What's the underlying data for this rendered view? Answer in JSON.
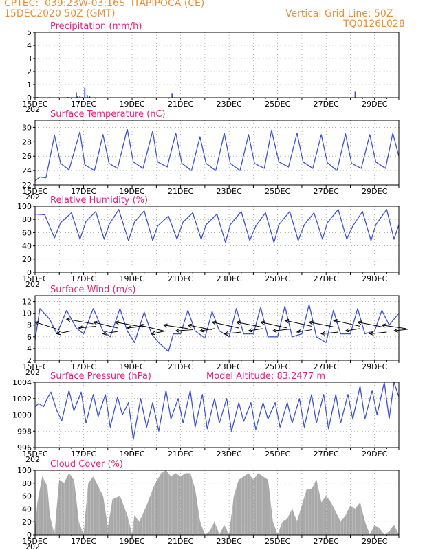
{
  "header": {
    "agency": "CPTEC:",
    "location": "039:23W-03:16S",
    "station": "ITAPIPOCA (CE)",
    "date": "15DEC2020 50Z (GMT)",
    "grid_note": "Vertical Grid Line: 50Z",
    "code": "TQ0126L028"
  },
  "x_axis": {
    "day_range": [
      15,
      30
    ],
    "tick_labels": [
      "15DEC",
      "17DEC",
      "19DEC",
      "21DEC",
      "23DEC",
      "25DEC",
      "27DEC",
      "29DEC"
    ],
    "tick_days": [
      15,
      17,
      19,
      21,
      23,
      25,
      27,
      29
    ],
    "year_fragment": "202"
  },
  "colors": {
    "header": "#e8903a",
    "panel_title": "#e6207a",
    "line": "#3a50d8",
    "cloud": "#a9a9a9"
  },
  "chart_data": [
    {
      "name": "precip",
      "type": "bar",
      "title": "Precipitation (mm/h)",
      "ylim": [
        0,
        5
      ],
      "yticks": [
        0,
        1,
        2,
        3,
        4,
        5
      ],
      "x_unit": "day of Dec 2020",
      "x": [
        15.1,
        15.6,
        15.95,
        16.35,
        16.7,
        16.75,
        16.85,
        16.95,
        17.05,
        17.15,
        17.25,
        20.65,
        28.2
      ],
      "values": [
        0.05,
        0.05,
        0.05,
        0.05,
        0.4,
        0.1,
        0.1,
        0.05,
        0.75,
        0.2,
        0.1,
        0.35,
        0.45
      ],
      "grid": true
    },
    {
      "name": "temp",
      "type": "line",
      "title": "Surface Temperature (nC)",
      "ylim": [
        22,
        31
      ],
      "yticks": [
        22,
        24,
        26,
        28,
        30
      ],
      "x": [
        15.0,
        15.2,
        15.45,
        15.8,
        16.05,
        16.4,
        16.85,
        17.05,
        17.45,
        17.8,
        18.05,
        18.4,
        18.8,
        19.05,
        19.45,
        19.85,
        20.05,
        20.45,
        20.8,
        21.05,
        21.45,
        21.8,
        22.05,
        22.45,
        22.8,
        23.05,
        23.45,
        23.8,
        24.05,
        24.45,
        24.75,
        25.05,
        25.45,
        25.8,
        26.05,
        26.45,
        26.8,
        27.05,
        27.45,
        27.8,
        28.05,
        28.45,
        28.8,
        29.05,
        29.45,
        29.75,
        30.0
      ],
      "values": [
        22.6,
        23.1,
        23.0,
        28.9,
        25.0,
        24.1,
        29.4,
        24.8,
        24.0,
        29.0,
        25.0,
        24.3,
        29.8,
        25.2,
        24.3,
        29.5,
        25.2,
        24.5,
        29.2,
        25.0,
        24.0,
        28.7,
        25.0,
        24.0,
        29.2,
        25.0,
        24.0,
        29.0,
        25.0,
        24.3,
        29.6,
        25.2,
        24.5,
        29.2,
        25.2,
        24.3,
        29.0,
        25.1,
        24.0,
        29.1,
        25.0,
        24.3,
        29.0,
        25.2,
        24.3,
        29.2,
        26.0
      ],
      "grid": true
    },
    {
      "name": "rh",
      "type": "line",
      "title": "Relative Humidity (%)",
      "ylim": [
        0,
        100
      ],
      "yticks": [
        0,
        20,
        40,
        60,
        80,
        100
      ],
      "x": [
        15.0,
        15.4,
        15.8,
        16.05,
        16.5,
        16.85,
        17.1,
        17.5,
        17.85,
        18.05,
        18.45,
        18.85,
        19.1,
        19.5,
        19.85,
        20.05,
        20.5,
        20.85,
        21.1,
        21.5,
        21.85,
        22.05,
        22.5,
        22.85,
        23.05,
        23.5,
        23.85,
        24.1,
        24.5,
        24.85,
        25.05,
        25.5,
        25.85,
        26.1,
        26.5,
        26.85,
        27.05,
        27.5,
        27.85,
        28.1,
        28.5,
        28.85,
        29.05,
        29.5,
        29.8,
        30.0
      ],
      "values": [
        88,
        87,
        52,
        75,
        90,
        50,
        77,
        92,
        50,
        72,
        95,
        48,
        76,
        93,
        48,
        70,
        85,
        50,
        76,
        90,
        50,
        72,
        88,
        45,
        72,
        92,
        48,
        70,
        90,
        45,
        72,
        92,
        48,
        72,
        90,
        50,
        75,
        95,
        50,
        70,
        92,
        48,
        72,
        95,
        50,
        72
      ],
      "grid": true
    },
    {
      "name": "wind",
      "type": "line",
      "title": "Surface Wind (m/s)",
      "ylim": [
        2,
        13
      ],
      "yticks": [
        2,
        4,
        6,
        8,
        10,
        12
      ],
      "x": [
        15.0,
        15.2,
        15.6,
        15.9,
        16.3,
        16.7,
        17.0,
        17.4,
        17.8,
        18.1,
        18.5,
        18.8,
        19.1,
        19.5,
        19.8,
        20.1,
        20.5,
        20.7,
        21.0,
        21.3,
        21.6,
        22.0,
        22.3,
        22.6,
        23.0,
        23.3,
        23.6,
        24.0,
        24.3,
        24.6,
        25.0,
        25.3,
        25.6,
        26.0,
        26.3,
        26.6,
        27.0,
        27.3,
        27.6,
        28.0,
        28.3,
        28.6,
        29.0,
        29.3,
        29.6,
        30.0
      ],
      "values": [
        5.5,
        10.8,
        9.0,
        6.5,
        10.5,
        7.5,
        6.5,
        10.8,
        7.0,
        6.0,
        10.8,
        7.0,
        5.0,
        10.2,
        6.5,
        5.0,
        3.5,
        6.5,
        6.5,
        10.5,
        7.0,
        5.8,
        10.3,
        7.0,
        6.0,
        10.8,
        6.5,
        6.5,
        11.0,
        6.0,
        6.0,
        11.2,
        6.0,
        6.5,
        11.5,
        6.0,
        5.0,
        10.5,
        6.5,
        6.5,
        10.8,
        6.5,
        7.0,
        10.5,
        8.0,
        10.0
      ],
      "arrow_days": [
        15.0,
        15.9,
        16.3,
        16.8,
        17.4,
        17.8,
        18.3,
        18.8,
        19.3,
        19.8,
        20.3,
        20.8,
        21.3,
        21.8,
        22.3,
        22.8,
        23.3,
        23.8,
        24.3,
        24.8,
        25.3,
        25.8,
        26.3,
        26.8,
        27.3,
        27.8,
        28.3,
        28.8,
        29.3,
        29.8
      ],
      "arrow_levels": [
        8.5,
        6.5,
        9.0,
        7.5,
        8.5,
        6.5,
        8.5,
        7.5,
        8.0,
        6.5,
        8.0,
        7.0,
        8.0,
        7.0,
        8.5,
        6.5,
        8.5,
        7.0,
        8.5,
        7.0,
        8.8,
        6.8,
        8.5,
        6.5,
        8.8,
        7.0,
        8.5,
        6.5,
        8.0,
        7.0
      ],
      "arrow_dx": [
        1.0,
        0.6,
        1.1,
        0.7,
        1.0,
        0.6,
        1.1,
        0.7,
        1.0,
        0.6,
        1.0,
        0.7,
        1.0,
        0.6,
        1.1,
        0.7,
        1.0,
        0.6,
        1.1,
        0.7,
        1.1,
        0.6,
        1.0,
        0.7,
        1.1,
        0.6,
        1.0,
        0.7,
        1.0,
        0.6
      ],
      "arrow_dy": [
        -1.3,
        0.5,
        -0.8,
        0.3,
        -1.0,
        0.4,
        -0.8,
        0.3,
        -1.0,
        0.5,
        -0.6,
        0.2,
        -0.8,
        0.4,
        -1.0,
        0.3,
        -0.8,
        0.4,
        -1.0,
        0.3,
        -1.0,
        0.4,
        -0.8,
        0.3,
        -1.0,
        0.4,
        -0.8,
        0.3,
        -0.6,
        0.3
      ],
      "grid": true
    },
    {
      "name": "pres",
      "type": "line",
      "title": "Surface Pressure (hPa)",
      "annotation": "Model Altitude: 83.2477 m",
      "ylim": [
        996,
        1004
      ],
      "yticks": [
        996,
        998,
        1000,
        1002,
        1004
      ],
      "x": [
        15.0,
        15.15,
        15.35,
        15.5,
        15.65,
        15.9,
        16.1,
        16.4,
        16.6,
        16.9,
        17.1,
        17.4,
        17.6,
        17.9,
        18.1,
        18.4,
        18.6,
        18.85,
        19.05,
        19.35,
        19.6,
        19.85,
        20.1,
        20.4,
        20.6,
        20.9,
        21.1,
        21.4,
        21.6,
        21.9,
        22.1,
        22.4,
        22.6,
        22.9,
        23.1,
        23.4,
        23.6,
        23.9,
        24.1,
        24.4,
        24.6,
        24.9,
        25.1,
        25.4,
        25.6,
        25.9,
        26.1,
        26.4,
        26.6,
        26.9,
        27.1,
        27.4,
        27.6,
        27.9,
        28.1,
        28.4,
        28.6,
        28.9,
        29.1,
        29.4,
        29.6,
        29.8,
        30.0
      ],
      "values": [
        1001.0,
        1001.4,
        1001.0,
        1002.0,
        1002.8,
        1000.5,
        999.3,
        1003.0,
        1000.5,
        1002.8,
        999.0,
        1002.5,
        999.8,
        1002.5,
        998.5,
        1002.2,
        1000.0,
        1001.5,
        997.0,
        1002.0,
        998.5,
        1001.5,
        998.0,
        1003.0,
        999.5,
        1002.0,
        999.0,
        1003.0,
        998.5,
        1002.5,
        998.3,
        1002.0,
        999.0,
        1002.0,
        998.0,
        1001.5,
        999.2,
        1001.5,
        998.2,
        1001.5,
        999.5,
        1001.5,
        998.5,
        1001.5,
        999.0,
        1002.0,
        998.5,
        1002.5,
        999.0,
        1002.5,
        998.3,
        1002.5,
        999.0,
        1002.5,
        999.5,
        1003.5,
        999.5,
        1003.0,
        1000.0,
        1004.0,
        999.5,
        1004.0,
        1002.2
      ],
      "grid": true
    },
    {
      "name": "cloud",
      "type": "area",
      "title": "Cloud Cover (%)",
      "ylim": [
        0,
        100
      ],
      "yticks": [
        0,
        20,
        40,
        60,
        80,
        100
      ],
      "x": [
        15.0,
        15.1,
        15.3,
        15.5,
        15.6,
        15.8,
        16.0,
        16.2,
        16.4,
        16.6,
        16.8,
        17.0,
        17.2,
        17.4,
        17.6,
        17.8,
        18.0,
        18.2,
        18.5,
        18.8,
        19.0,
        19.1,
        19.3,
        19.6,
        19.9,
        20.2,
        20.4,
        20.6,
        20.8,
        21.0,
        21.2,
        21.4,
        21.6,
        21.8,
        22.0,
        22.2,
        22.4,
        22.6,
        22.8,
        23.0,
        23.2,
        23.4,
        23.6,
        23.8,
        24.0,
        24.2,
        24.4,
        24.6,
        24.8,
        25.0,
        25.2,
        25.4,
        25.6,
        25.8,
        26.0,
        26.2,
        26.4,
        26.6,
        26.8,
        27.0,
        27.2,
        27.4,
        27.6,
        27.8,
        28.0,
        28.2,
        28.4,
        28.6,
        28.8,
        29.0,
        29.2,
        29.4,
        29.6,
        29.8,
        30.0
      ],
      "values": [
        5,
        50,
        90,
        75,
        30,
        0,
        85,
        80,
        95,
        85,
        20,
        0,
        80,
        90,
        75,
        60,
        10,
        55,
        60,
        30,
        0,
        30,
        20,
        45,
        75,
        95,
        100,
        90,
        95,
        90,
        95,
        95,
        70,
        20,
        0,
        5,
        20,
        0,
        15,
        0,
        60,
        85,
        90,
        95,
        85,
        95,
        90,
        85,
        20,
        0,
        20,
        25,
        40,
        20,
        45,
        70,
        70,
        85,
        50,
        60,
        50,
        35,
        20,
        30,
        45,
        40,
        50,
        20,
        0,
        15,
        10,
        0,
        5,
        15,
        0
      ],
      "grid": true
    }
  ]
}
